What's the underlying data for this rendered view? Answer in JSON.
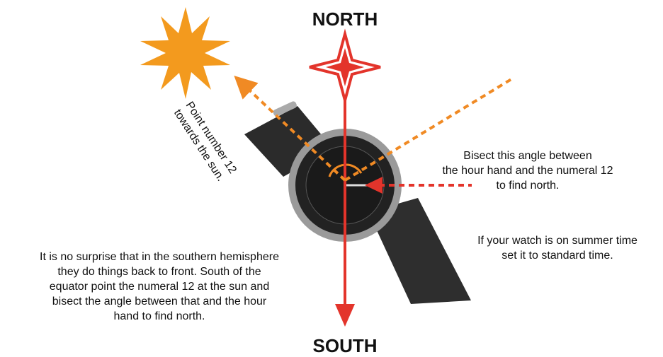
{
  "labels": {
    "north": "NORTH",
    "south": "SOUTH"
  },
  "annotations": {
    "sun": [
      "Point number 12",
      "towards the sun."
    ],
    "bisect": [
      "Bisect this angle between",
      "the hour hand and the numeral 12",
      "to find north."
    ],
    "summer": [
      "If your watch is on summer time",
      "set it to standard time."
    ],
    "southern": [
      "It is no surprise that in the southern hemisphere",
      "they do things back to front. South of the",
      "equator point the numeral 12 at the sun and",
      "bisect the angle between that and the hour",
      "hand to find north."
    ]
  }
}
